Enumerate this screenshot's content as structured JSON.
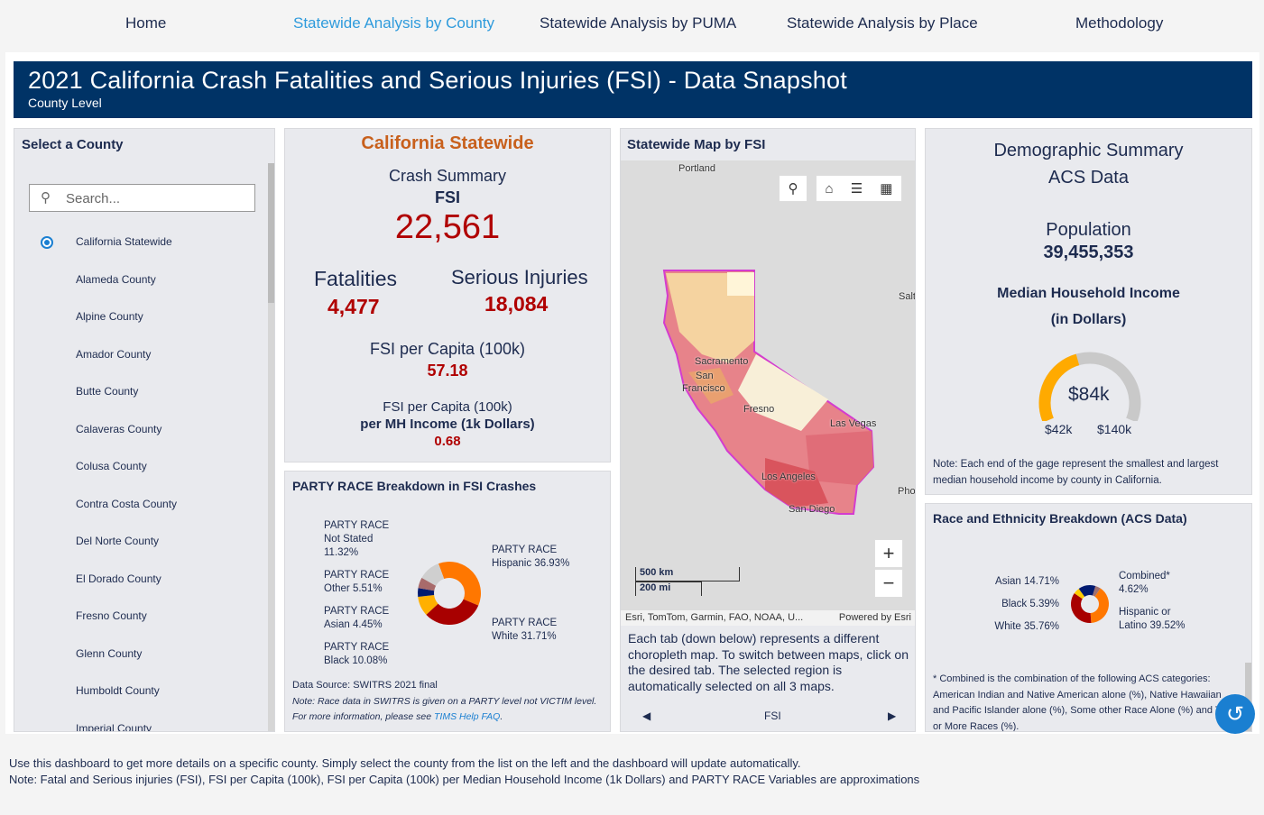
{
  "nav": [
    "Home",
    "Statewide Analysis by County",
    "Statewide Analysis by PUMA",
    "Statewide Analysis by Place",
    "Methodology"
  ],
  "nav_active": 1,
  "header": {
    "title": "2021 California Crash Fatalities and Serious Injuries (FSI) - Data Snapshot",
    "subtitle": "County Level"
  },
  "county_panel": {
    "title": "Select a County",
    "search_placeholder": "Search...",
    "counties": [
      "California Statewide",
      "Alameda County",
      "Alpine County",
      "Amador County",
      "Butte County",
      "Calaveras County",
      "Colusa County",
      "Contra Costa County",
      "Del Norte County",
      "El Dorado County",
      "Fresno County",
      "Glenn County",
      "Humboldt County",
      "Imperial County"
    ],
    "selected": 0
  },
  "summary": {
    "region": "California Statewide",
    "crash_summary": "Crash Summary",
    "fsi_label": "FSI",
    "fsi": "22,561",
    "fatalities_label": "Fatalities",
    "fatalities": "4,477",
    "injuries_label": "Serious Injuries",
    "injuries": "18,084",
    "per_capita_label": "FSI per Capita (100k)",
    "per_capita": "57.18",
    "per_income_label1": "FSI per Capita (100k)",
    "per_income_label2": "per MH Income (1k Dollars)",
    "per_income": "0.68"
  },
  "party_race": {
    "title": "PARTY RACE Breakdown in FSI Crashes",
    "prefix": "PARTY RACE",
    "slices": [
      {
        "label": "Hispanic 36.93%",
        "value": 36.93,
        "color": "#ff7700"
      },
      {
        "label": "White 31.71%",
        "value": 31.71,
        "color": "#a80000"
      },
      {
        "label": "Black 10.08%",
        "value": 10.08,
        "color": "#ffb000"
      },
      {
        "label": "Asian 4.45%",
        "value": 4.45,
        "color": "#001a70"
      },
      {
        "label": "Other 5.51%",
        "value": 5.51,
        "color": "#a86b6b"
      },
      {
        "label": "Not Stated 11.32%",
        "value": 11.32,
        "color": "#cfcfcf"
      }
    ],
    "source": "Data Source: SWITRS 2021 final",
    "note": "Note: Race data in SWITRS is given on a PARTY level not VICTIM level.",
    "more": "For more information, please see ",
    "link": "TIMS Help FAQ",
    "period": "."
  },
  "map": {
    "title": "Statewide Map by FSI",
    "labels": [
      "Portland",
      "Sacramento",
      "San",
      "Francisco",
      "Fresno",
      "Las Vegas",
      "Los Angeles",
      "San Diego",
      "Salt",
      "Pho"
    ],
    "scale_km": "500 km",
    "scale_mi": "200 mi",
    "attribution": "Esri, TomTom, Garmin, FAO, NOAA, U...",
    "powered": "Powered by Esri",
    "description": "Each tab (down below) represents a different choropleth map. To switch between maps, click on the desired tab. The selected region is automatically selected on all 3 maps.",
    "tab": "FSI"
  },
  "demographics": {
    "title1": "Demographic Summary",
    "title2": "ACS Data",
    "pop_label": "Population",
    "population": "39,455,353",
    "income_label1": "Median Household Income",
    "income_label2": "(in Dollars)",
    "gauge_value": "$84k",
    "gauge_min": "$42k",
    "gauge_max": "$140k",
    "gauge_fraction": 0.43,
    "note": "Note: Each end of the gage represent the smallest and largest median household income by county in California."
  },
  "acs_race": {
    "title": "Race and Ethnicity Breakdown (ACS Data)",
    "slices": [
      {
        "label": "Combined* 4.62%",
        "value": 4.62,
        "color": "#a07070"
      },
      {
        "label": "Hispanic or Latino 39.52%",
        "value": 39.52,
        "color": "#ff7700"
      },
      {
        "label": "White 35.76%",
        "value": 35.76,
        "color": "#a80000"
      },
      {
        "label": "Black 5.39%",
        "value": 5.39,
        "color": "#ffcc00"
      },
      {
        "label": "Asian 14.71%",
        "value": 14.71,
        "color": "#001a70"
      }
    ],
    "note": "* Combined  is the combination of the following ACS categories: American Indian and Native American alone (%), Native Hawaiian and Pacific Islander alone (%), Some other Race Alone (%) and Two or More Races (%)."
  },
  "footer": [
    "Use this dashboard to get more details on a specific county. Simply select the county from the list on the left and the dashboard will update automatically.",
    "Note: Fatal and Serious injuries (FSI), FSI per Capita (100k), FSI per Capita (100k) per Median Household Income (1k Dollars) and PARTY RACE Variables are approximations"
  ]
}
